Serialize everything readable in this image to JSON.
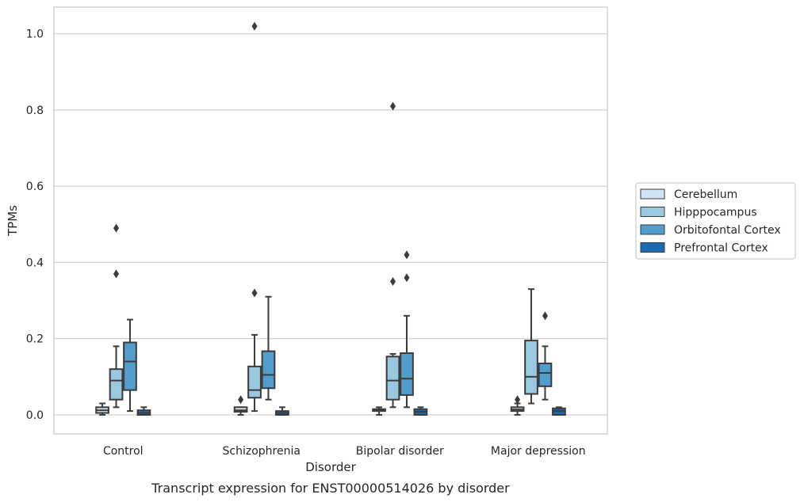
{
  "chart_data": {
    "type": "box",
    "title": "",
    "caption": "Transcript expression for ENST00000514026 by disorder",
    "xlabel": "Disorder",
    "ylabel": "TPMs",
    "ylim": [
      -0.05,
      1.07
    ],
    "yticks": [
      0.0,
      0.2,
      0.4,
      0.6,
      0.8,
      1.0
    ],
    "grid": true,
    "legend_position": "right",
    "categories": [
      "Control",
      "Schizophrenia",
      "Bipolar disorder",
      "Major depression"
    ],
    "series": [
      {
        "name": "Cerebellum",
        "color": "#d2e3f3",
        "boxes": [
          {
            "whisker_low": 0.0,
            "q1": 0.005,
            "median": 0.012,
            "q3": 0.02,
            "whisker_high": 0.03,
            "outliers": []
          },
          {
            "whisker_low": 0.0,
            "q1": 0.008,
            "median": 0.012,
            "q3": 0.02,
            "whisker_high": 0.02,
            "outliers": [
              0.04
            ]
          },
          {
            "whisker_low": 0.0,
            "q1": 0.01,
            "median": 0.012,
            "q3": 0.015,
            "whisker_high": 0.02,
            "outliers": []
          },
          {
            "whisker_low": 0.0,
            "q1": 0.01,
            "median": 0.014,
            "q3": 0.02,
            "whisker_high": 0.03,
            "outliers": [
              0.04
            ]
          }
        ]
      },
      {
        "name": "Hipppocampus",
        "color": "#9ac8e0",
        "boxes": [
          {
            "whisker_low": 0.02,
            "q1": 0.04,
            "median": 0.09,
            "q3": 0.12,
            "whisker_high": 0.18,
            "outliers": [
              0.37,
              0.49
            ]
          },
          {
            "whisker_low": 0.01,
            "q1": 0.045,
            "median": 0.065,
            "q3": 0.127,
            "whisker_high": 0.21,
            "outliers": [
              0.32,
              1.02
            ]
          },
          {
            "whisker_low": 0.02,
            "q1": 0.04,
            "median": 0.09,
            "q3": 0.153,
            "whisker_high": 0.16,
            "outliers": [
              0.35,
              0.81
            ]
          },
          {
            "whisker_low": 0.03,
            "q1": 0.055,
            "median": 0.1,
            "q3": 0.195,
            "whisker_high": 0.33,
            "outliers": []
          }
        ]
      },
      {
        "name": "Orbitofontal Cortex",
        "color": "#529dcc",
        "boxes": [
          {
            "whisker_low": 0.01,
            "q1": 0.065,
            "median": 0.14,
            "q3": 0.19,
            "whisker_high": 0.25,
            "outliers": []
          },
          {
            "whisker_low": 0.04,
            "q1": 0.07,
            "median": 0.105,
            "q3": 0.167,
            "whisker_high": 0.31,
            "outliers": []
          },
          {
            "whisker_low": 0.02,
            "q1": 0.052,
            "median": 0.095,
            "q3": 0.162,
            "whisker_high": 0.26,
            "outliers": [
              0.36,
              0.42
            ]
          },
          {
            "whisker_low": 0.04,
            "q1": 0.075,
            "median": 0.11,
            "q3": 0.135,
            "whisker_high": 0.18,
            "outliers": [
              0.26
            ]
          }
        ]
      },
      {
        "name": "Prefrontal Cortex",
        "color": "#1c6aaf",
        "boxes": [
          {
            "whisker_low": 0.0,
            "q1": 0.0,
            "median": 0.005,
            "q3": 0.012,
            "whisker_high": 0.02,
            "outliers": []
          },
          {
            "whisker_low": 0.0,
            "q1": 0.0,
            "median": 0.005,
            "q3": 0.01,
            "whisker_high": 0.02,
            "outliers": []
          },
          {
            "whisker_low": 0.0,
            "q1": 0.0,
            "median": 0.008,
            "q3": 0.015,
            "whisker_high": 0.02,
            "outliers": []
          },
          {
            "whisker_low": 0.0,
            "q1": 0.0,
            "median": 0.01,
            "q3": 0.017,
            "whisker_high": 0.02,
            "outliers": []
          }
        ]
      }
    ]
  }
}
